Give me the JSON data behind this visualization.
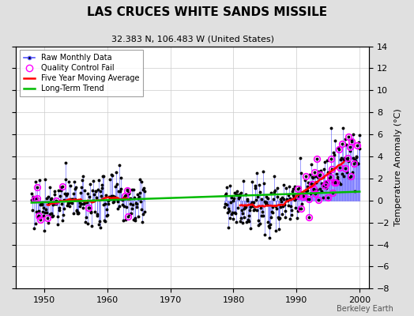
{
  "title": "LAS CRUCES WHITE SANDS MISSILE",
  "subtitle": "32.383 N, 106.483 W (United States)",
  "ylabel": "Temperature Anomaly (°C)",
  "watermark": "Berkeley Earth",
  "xlim": [
    1945.5,
    2001.5
  ],
  "ylim": [
    -8,
    14
  ],
  "yticks": [
    -8,
    -6,
    -4,
    -2,
    0,
    2,
    4,
    6,
    8,
    10,
    12,
    14
  ],
  "xticks": [
    1950,
    1960,
    1970,
    1980,
    1990,
    2000
  ],
  "bg_color": "#e0e0e0",
  "plot_bg_color": "#ffffff",
  "stem_color": "#5555ff",
  "dot_color": "#000000",
  "qc_color": "#ff00ff",
  "moving_avg_color": "#ff0000",
  "trend_color": "#00bb00",
  "seed": 77,
  "years_start": 1948,
  "years_end": 2000,
  "gap_start": 1966.0,
  "gap_end": 1978.5
}
